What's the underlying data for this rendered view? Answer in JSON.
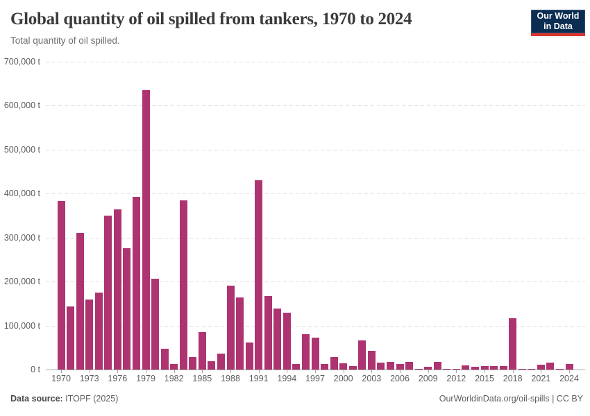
{
  "header": {
    "title": "Global quantity of oil spilled from tankers, 1970 to 2024",
    "subtitle": "Total quantity of oil spilled.",
    "logo": {
      "line1": "Our World",
      "line2": "in Data"
    }
  },
  "footer": {
    "source_label": "Data source:",
    "source_value": " ITOPF (2025)",
    "right_text": "OurWorldinData.org/oil-spills | CC BY"
  },
  "colors": {
    "bar": "#ad3470",
    "grid": "#dedede",
    "axis": "#a3a3a3",
    "tick_label": "#5c5c5c",
    "logo_bg": "#0c2d52",
    "logo_stripe": "#dc342e"
  },
  "chart_data": {
    "type": "bar",
    "title": "Global quantity of oil spilled from tankers, 1970 to 2024",
    "subtitle": "Total quantity of oil spilled.",
    "xlabel": "",
    "ylabel": "",
    "unit": "t",
    "ylim": [
      0,
      700000
    ],
    "ytick_interval": 100000,
    "ytick_labels": [
      "0 t",
      "100,000 t",
      "200,000 t",
      "300,000 t",
      "400,000 t",
      "500,000 t",
      "600,000 t",
      "700,000 t"
    ],
    "xtick_years": [
      1970,
      1973,
      1976,
      1979,
      1982,
      1985,
      1988,
      1991,
      1994,
      1997,
      2000,
      2003,
      2006,
      2009,
      2012,
      2015,
      2018,
      2021,
      2024
    ],
    "grid": "horizontal-dashed",
    "legend": "none",
    "x": [
      1970,
      1971,
      1972,
      1973,
      1974,
      1975,
      1976,
      1977,
      1978,
      1979,
      1980,
      1981,
      1982,
      1983,
      1984,
      1985,
      1986,
      1987,
      1988,
      1989,
      1990,
      1991,
      1992,
      1993,
      1994,
      1995,
      1996,
      1997,
      1998,
      1999,
      2000,
      2001,
      2002,
      2003,
      2004,
      2005,
      2006,
      2007,
      2008,
      2009,
      2010,
      2011,
      2012,
      2013,
      2014,
      2015,
      2016,
      2017,
      2018,
      2019,
      2020,
      2021,
      2022,
      2023,
      2024
    ],
    "values": [
      383000,
      144000,
      311000,
      160000,
      175000,
      350000,
      364000,
      276000,
      393000,
      636000,
      206000,
      48000,
      12000,
      384000,
      29000,
      85000,
      19000,
      37000,
      190000,
      164000,
      61000,
      430000,
      167000,
      139000,
      130000,
      12000,
      80000,
      72000,
      13000,
      29000,
      14000,
      8000,
      67000,
      43000,
      16000,
      17000,
      13000,
      18000,
      2000,
      6000,
      18000,
      2000,
      1000,
      9000,
      7000,
      8000,
      8000,
      8000,
      116000,
      1000,
      1000,
      11000,
      15000,
      2000,
      12000
    ]
  }
}
